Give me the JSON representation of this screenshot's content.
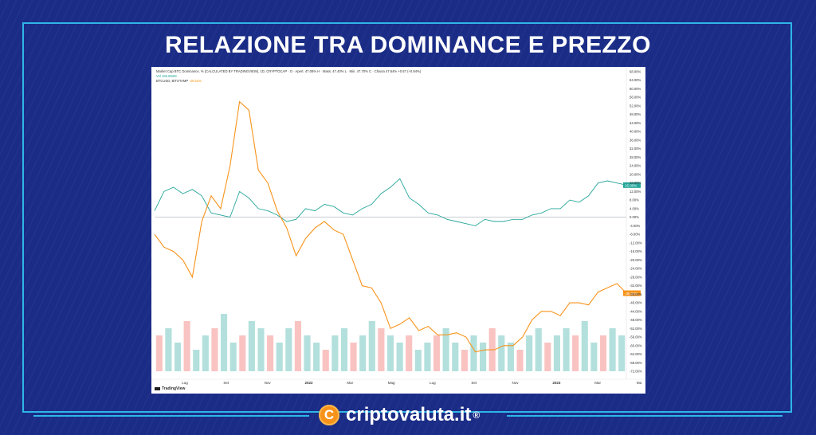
{
  "page": {
    "title": "RELAZIONE TRA DOMINANCE E PREZZO",
    "brand": "criptovaluta.it",
    "brand_symbol": "®",
    "brand_coin_glyph": "C",
    "accent_color": "#2fb6e6",
    "background_color": "#1a2c86"
  },
  "chart_legend": {
    "line1": "Market Cap BTC Dominance, % (CALCULATED BY TRADINGVIEW), 1D, CRYPTOCAP · O · Apert. 47.08% H · Mass. 47.40% L · Min. 47.70% C · Chiusa 47.64% +0.57 (+0.94%)",
    "line2": "Vol 166.864M",
    "line3_name": "BTCUSD, BITSTAMP",
    "line3_value": "-35.52%",
    "tradingview": "TradingView"
  },
  "chart_data": {
    "type": "line",
    "x_tick_labels": [
      "Lug",
      "Set",
      "Nov",
      "2022",
      "Mar",
      "Mag",
      "Lug",
      "Set",
      "Nov",
      "2023",
      "Mar",
      "Ma"
    ],
    "y_tick_labels": [
      "68.00%",
      "64.00%",
      "60.00%",
      "56.00%",
      "52.00%",
      "48.00%",
      "44.00%",
      "40.00%",
      "36.00%",
      "32.00%",
      "28.00%",
      "24.00%",
      "20.00%",
      "16.00%",
      "12.00%",
      "8.00%",
      "4.00%",
      "0.00%",
      "-4.00%",
      "-8.00%",
      "-12.00%",
      "-16.00%",
      "-20.00%",
      "-24.00%",
      "-28.00%",
      "-32.00%",
      "-36.00%",
      "-40.00%",
      "-44.00%",
      "-48.00%",
      "-52.00%",
      "-56.00%",
      "-60.00%",
      "-64.00%",
      "-68.00%",
      "-72.00%"
    ],
    "ylim": [
      -72,
      68
    ],
    "series": [
      {
        "name": "Market Cap BTC Dominance",
        "color": "#26a69a",
        "last_label": "15.00%",
        "x": [
          0,
          2,
          4,
          6,
          8,
          10,
          12,
          14,
          16,
          18,
          20,
          22,
          24,
          26,
          28,
          30,
          32,
          34,
          36,
          38,
          40,
          42,
          44,
          46,
          48,
          50,
          52,
          54,
          56,
          58,
          60,
          62,
          64,
          66,
          68,
          70,
          72,
          74,
          76,
          78,
          80,
          82,
          84,
          86,
          88,
          90,
          92,
          94,
          96,
          98,
          100
        ],
        "values": [
          3,
          12,
          14,
          11,
          13,
          10,
          2,
          1,
          0,
          12,
          9,
          4,
          3,
          1,
          -2,
          -1,
          4,
          3,
          6,
          5,
          2,
          1,
          4,
          6,
          11,
          14,
          18,
          9,
          6,
          2,
          1,
          -1,
          -2,
          -3,
          -4,
          -1,
          -2,
          -2,
          -1,
          -1,
          1,
          2,
          4,
          4,
          8,
          7,
          10,
          16,
          17,
          16,
          15
        ]
      },
      {
        "name": "BTCUSD, BITSTAMP",
        "color": "#f7931a",
        "last_label": "-35.52%",
        "x": [
          0,
          2,
          4,
          6,
          8,
          10,
          12,
          14,
          16,
          18,
          20,
          22,
          24,
          26,
          28,
          30,
          32,
          34,
          36,
          38,
          40,
          42,
          44,
          46,
          48,
          50,
          52,
          54,
          56,
          58,
          60,
          62,
          64,
          66,
          68,
          70,
          72,
          74,
          76,
          78,
          80,
          82,
          84,
          86,
          88,
          90,
          92,
          94,
          96,
          98,
          100
        ],
        "values": [
          -8,
          -14,
          -16,
          -20,
          -28,
          -2,
          10,
          4,
          24,
          54,
          50,
          22,
          16,
          3,
          -5,
          -18,
          -10,
          -5,
          -2,
          -6,
          -8,
          -20,
          -32,
          -33,
          -40,
          -52,
          -50,
          -47,
          -53,
          -51,
          -55,
          -55,
          -54,
          -56,
          -63,
          -62,
          -62,
          -60,
          -60,
          -56,
          -48,
          -44,
          -44,
          -46,
          -40,
          -40,
          -41,
          -35,
          -33,
          -31,
          -35.52
        ]
      }
    ],
    "volume": [
      5,
      6,
      4,
      7,
      3,
      5,
      6,
      8,
      4,
      5,
      7,
      6,
      5,
      4,
      6,
      7,
      5,
      4,
      3,
      5,
      6,
      4,
      5,
      7,
      6,
      5,
      4,
      5,
      3,
      4,
      5,
      6,
      4,
      3,
      5,
      4,
      6,
      5,
      4,
      3,
      5,
      6,
      4,
      5,
      6,
      5,
      7,
      4,
      5,
      6,
      5
    ],
    "zero_line": 0,
    "grid": false,
    "legend_placement": "top-left"
  }
}
